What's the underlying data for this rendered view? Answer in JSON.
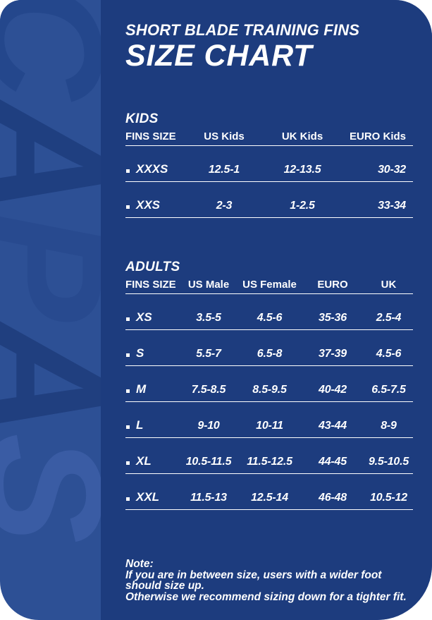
{
  "header": {
    "subtitle": "SHORT BLADE TRAINING FINS",
    "title": "SIZE CHART"
  },
  "kids": {
    "heading": "KIDS",
    "columns": [
      "FINS SIZE",
      "US Kids",
      "UK Kids",
      "EURO Kids"
    ],
    "rows": [
      {
        "size": "XXXS",
        "us": "12.5-1",
        "uk": "12-13.5",
        "euro": "30-32"
      },
      {
        "size": "XXS",
        "us": "2-3",
        "uk": "1-2.5",
        "euro": "33-34"
      }
    ]
  },
  "adults": {
    "heading": "ADULTS",
    "columns": [
      "FINS SIZE",
      "US Male",
      "US Female",
      "EURO",
      "UK"
    ],
    "rows": [
      {
        "size": "XS",
        "us_male": "3.5-5",
        "us_female": "4.5-6",
        "euro": "35-36",
        "uk": "2.5-4"
      },
      {
        "size": "S",
        "us_male": "5.5-7",
        "us_female": "6.5-8",
        "euro": "37-39",
        "uk": "4.5-6"
      },
      {
        "size": "M",
        "us_male": "7.5-8.5",
        "us_female": "8.5-9.5",
        "euro": "40-42",
        "uk": "6.5-7.5"
      },
      {
        "size": "L",
        "us_male": "9-10",
        "us_female": "10-11",
        "euro": "43-44",
        "uk": "8-9"
      },
      {
        "size": "XL",
        "us_male": "10.5-11.5",
        "us_female": "11.5-12.5",
        "euro": "44-45",
        "uk": "9.5-10.5"
      },
      {
        "size": "XXL",
        "us_male": "11.5-13",
        "us_female": "12.5-14",
        "euro": "46-48",
        "uk": "10.5-12"
      }
    ]
  },
  "note": {
    "label": "Note:",
    "lines": [
      "If you are in between size, users with a wider foot",
      "should size up.",
      "Otherwise we recommend sizing down for a tighter fit."
    ]
  },
  "watermark": {
    "letters": [
      {
        "char": "C",
        "color": "#24478c"
      },
      {
        "char": "A",
        "color": "#1f3f80"
      },
      {
        "char": "P",
        "color": "#284a8f"
      },
      {
        "char": "A",
        "color": "#203f7f"
      },
      {
        "char": "S",
        "color": "#3a5ca4"
      }
    ]
  },
  "colors": {
    "page_background": "#ffffff",
    "panel_navy": "#1d3c7e",
    "strip_blue": "#2d5095",
    "text": "#ffffff"
  }
}
